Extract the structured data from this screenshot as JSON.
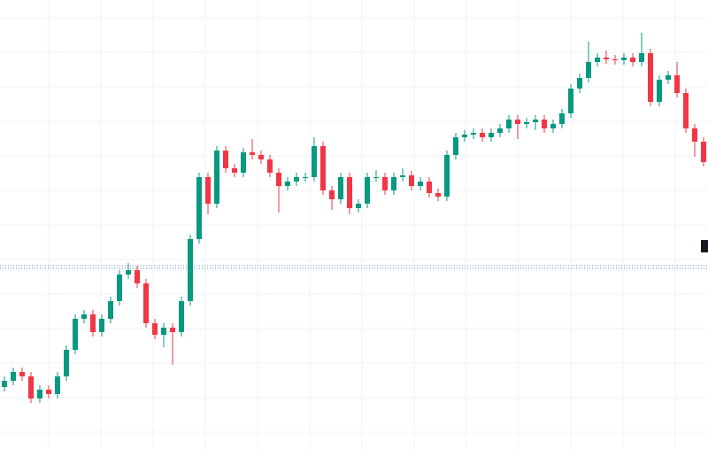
{
  "chart_data": {
    "type": "candlestick",
    "open": [
      70,
      77,
      87,
      82,
      57,
      67,
      62,
      82,
      112,
      147,
      152,
      132,
      147,
      167,
      197,
      202,
      187,
      142,
      129,
      137,
      132,
      167,
      237,
      307,
      277,
      337,
      317,
      312,
      335,
      332,
      327,
      312,
      297,
      302,
      307,
      307,
      342,
      292,
      282,
      307,
      272,
      277,
      307,
      307,
      292,
      307,
      309,
      297,
      302,
      289,
      285,
      332,
      352,
      355,
      357,
      352,
      357,
      362,
      372,
      367,
      369,
      372,
      362,
      367,
      379,
      407,
      419,
      437,
      442,
      440,
      439,
      442,
      437,
      447,
      392,
      417,
      422,
      402,
      362,
      347
    ],
    "high": [
      82,
      92,
      92,
      87,
      72,
      72,
      87,
      117,
      152,
      157,
      157,
      152,
      172,
      202,
      210,
      207,
      192,
      147,
      142,
      142,
      172,
      242,
      312,
      312,
      342,
      342,
      322,
      340,
      350,
      337,
      332,
      317,
      307,
      312,
      312,
      352,
      347,
      297,
      312,
      312,
      282,
      312,
      315,
      312,
      312,
      317,
      314,
      307,
      307,
      294,
      337,
      357,
      360,
      362,
      362,
      362,
      367,
      377,
      377,
      374,
      377,
      377,
      372,
      384,
      412,
      424,
      460,
      447,
      450,
      445,
      447,
      447,
      470,
      452,
      422,
      427,
      437,
      407,
      367,
      352
    ],
    "low": [
      65,
      72,
      77,
      52,
      52,
      57,
      57,
      77,
      107,
      142,
      127,
      127,
      142,
      162,
      192,
      182,
      137,
      124,
      115,
      95,
      127,
      162,
      232,
      265,
      272,
      312,
      307,
      307,
      327,
      322,
      307,
      267,
      292,
      297,
      302,
      302,
      287,
      270,
      277,
      265,
      267,
      272,
      302,
      287,
      287,
      302,
      292,
      292,
      284,
      280,
      280,
      327,
      347,
      350,
      347,
      347,
      352,
      357,
      350,
      362,
      360,
      357,
      357,
      362,
      374,
      402,
      414,
      432,
      435,
      434,
      434,
      432,
      432,
      387,
      387,
      412,
      397,
      357,
      330,
      319
    ],
    "close": [
      77,
      87,
      82,
      57,
      67,
      62,
      82,
      112,
      147,
      152,
      132,
      147,
      167,
      197,
      202,
      187,
      142,
      129,
      137,
      132,
      167,
      237,
      307,
      277,
      337,
      317,
      312,
      335,
      332,
      327,
      312,
      297,
      302,
      307,
      307,
      342,
      292,
      282,
      307,
      272,
      277,
      307,
      307,
      292,
      307,
      309,
      297,
      302,
      289,
      285,
      332,
      352,
      355,
      357,
      352,
      357,
      362,
      372,
      367,
      369,
      372,
      362,
      367,
      379,
      407,
      419,
      437,
      442,
      440,
      439,
      442,
      437,
      447,
      392,
      417,
      422,
      402,
      362,
      347,
      324
    ],
    "up_color": "#089981",
    "down_color": "#f23645",
    "price_lines": [
      207,
      204
    ],
    "price_line_color": "#5b8fb9",
    "ylim": [
      0,
      507
    ],
    "grid": true
  }
}
